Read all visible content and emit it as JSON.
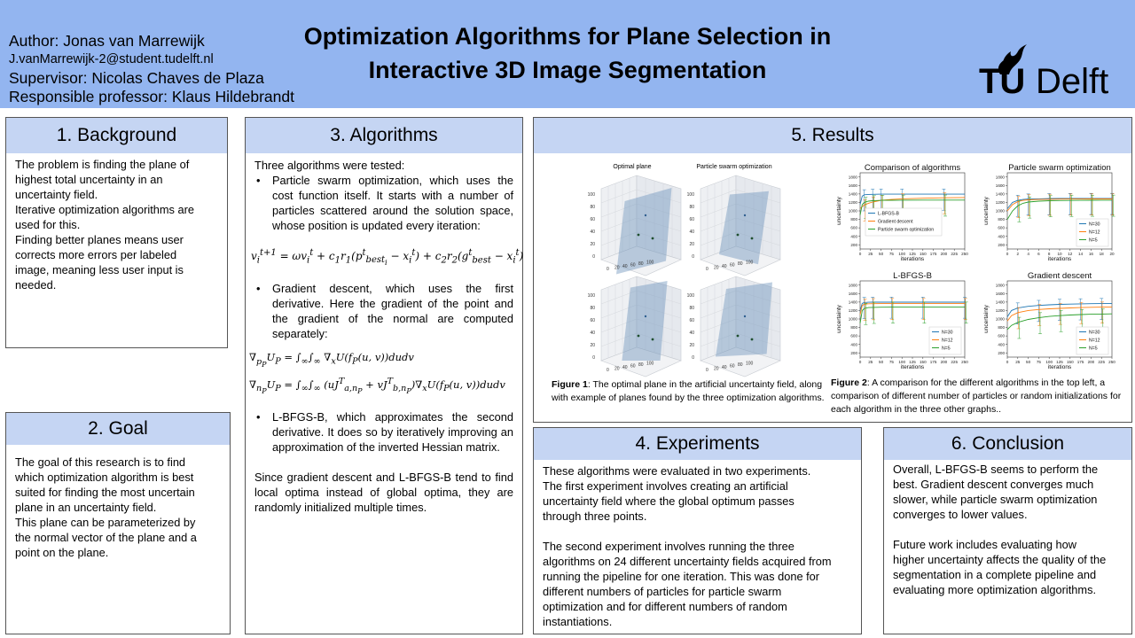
{
  "header": {
    "author": "Author: Jonas van Marrewijk",
    "email": "J.vanMarrewijk-2@student.tudelft.nl",
    "supervisor": "Supervisor: Nicolas Chaves de Plaza",
    "professor": "Responsible professor: Klaus Hildebrandt",
    "title_line1": "Optimization Algorithms for Plane Selection in",
    "title_line2": "Interactive 3D Image Segmentation",
    "logo_tu": "TU",
    "logo_delft": "Delft"
  },
  "background": {
    "title": "1. Background",
    "lines": [
      "The problem is finding the plane of",
      "highest total uncertainty in an",
      "uncertainty field.",
      "Iterative optimization algorithms are",
      "used for this.",
      "Finding better planes means user",
      "corrects more errors per labeled",
      "image, meaning less user input is",
      "needed."
    ]
  },
  "goal": {
    "title": "2. Goal",
    "lines": [
      "The goal of this research is to find",
      "which optimization algorithm is best",
      "suited for finding the most uncertain",
      "plane in an uncertainty field.",
      "This plane can be parameterized by",
      "the normal vector of the plane and a",
      "point on the plane."
    ]
  },
  "algorithms": {
    "title": "3. Algorithms",
    "intro": "Three algorithms were tested:",
    "pso": "Particle swarm optimization, which uses the cost function itself. It starts with a number of particles scattered around the solution space, whose position is updated every iteration:",
    "pso_formula": "v_i^{t+1} = ωv_i^t + c1r1(p_best,i − x_i^t) + c2r2(g_best − x_i^t)",
    "gd": "Gradient descent, which uses the first derivative. Here the gradient of the point and the gradient of the normal are computed separately:",
    "gd_formula1": "∇_pP U_P = ∫∞∫∞ ∇_x U(f_P(u,v)) du dv",
    "gd_formula2": "∇_nP U_P = ∫∞∫∞ (u J^T_a,nP + v J^T_b,nP) ∇_x U(f_P(u,v)) du dv",
    "lbfgsb": "L-BFGS-B, which approximates the second derivative. It does so by iteratively improving an approximation of the inverted Hessian matrix.",
    "closing": "Since gradient descent and L-BFGS-B tend to find local optima instead of global optima, they are randomly initialized multiple times."
  },
  "results": {
    "title": "5. Results",
    "fig1_titles": [
      "Optimal plane",
      "Particle swarm optimization"
    ],
    "fig1_label": "Figure 1",
    "fig1_caption": ": The optimal plane in the artificial uncertainty field, along with example of planes found by the three optimization algorithms.",
    "fig2_label": "Figure 2",
    "fig2_caption": ": A comparison for the different algorithms in the top left, a comparison of different number of particles or random initializations for each algorithm in the three other graphs.."
  },
  "experiments": {
    "title": "4. Experiments",
    "lines1": [
      "These algorithms were evaluated in two experiments.",
      "The first experiment involves creating an artificial",
      "uncertainty field where the global optimum passes",
      "through three points."
    ],
    "lines2": [
      "The second experiment involves running the three",
      "algorithms on 24 different uncertainty fields acquired from",
      "running the pipeline for one iteration. This was done for",
      "different numbers of particles for particle swarm",
      "optimization and for different numbers of random",
      "instantiations."
    ]
  },
  "conclusion": {
    "title": "6. Conclusion",
    "lines1": [
      "Overall, L-BFGS-B seems to perform the",
      "best. Gradient descent converges much",
      "slower, while particle swarm optimization",
      "converges to lower values."
    ],
    "lines2": [
      "Future work includes evaluating how",
      "higher uncertainty affects the quality of the",
      "segmentation in a complete pipeline and",
      "evaluating more optimization algorithms."
    ]
  },
  "colors": {
    "header": "#93b5f0",
    "section_title": "#c5d5f3",
    "series1": "#1f77b4",
    "series2": "#ff7f0e",
    "series3": "#2ca02c"
  },
  "chart_data": [
    {
      "type": "line",
      "title": "Comparison of algorithms",
      "xlabel": "iterations",
      "ylabel": "uncertainty",
      "xticks": [
        0,
        25,
        50,
        75,
        100,
        125,
        150,
        175,
        200,
        225,
        250
      ],
      "yticks": [
        200,
        400,
        600,
        800,
        1000,
        1200,
        1400,
        1600,
        1800
      ],
      "xlim": [
        0,
        250
      ],
      "ylim": [
        100,
        1900
      ],
      "x": [
        0,
        5,
        10,
        20,
        30,
        40,
        50,
        75,
        100,
        150,
        200,
        250
      ],
      "series": [
        {
          "name": "L-BFGS-B",
          "color": "#1f77b4",
          "values": [
            1150,
            1350,
            1380,
            1390,
            1392,
            1394,
            1395,
            1395,
            1395,
            1395,
            1395,
            1395
          ]
        },
        {
          "name": "Gradient descent",
          "color": "#ff7f0e",
          "values": [
            1050,
            1100,
            1140,
            1180,
            1210,
            1230,
            1250,
            1270,
            1285,
            1300,
            1310,
            1315
          ]
        },
        {
          "name": "Particle swarm optimization",
          "color": "#2ca02c",
          "values": [
            900,
            1150,
            1200,
            1230,
            1240,
            1245,
            1250,
            1252,
            1254,
            1255,
            1256,
            1256
          ]
        }
      ],
      "legend": "center"
    },
    {
      "type": "line",
      "title": "Particle swarm optimization",
      "xlabel": "iterations",
      "ylabel": "uncertainty",
      "xticks": [
        0,
        2,
        4,
        6,
        8,
        10,
        12,
        14,
        16,
        18,
        20
      ],
      "yticks": [
        200,
        400,
        600,
        800,
        1000,
        1200,
        1400,
        1600,
        1800
      ],
      "xlim": [
        0,
        20
      ],
      "ylim": [
        100,
        1900
      ],
      "x": [
        0,
        1,
        2,
        3,
        4,
        6,
        8,
        10,
        12,
        14,
        16,
        18,
        20
      ],
      "series": [
        {
          "name": "N=30",
          "color": "#1f77b4",
          "values": [
            1050,
            1200,
            1250,
            1270,
            1280,
            1285,
            1290,
            1292,
            1293,
            1294,
            1295,
            1295,
            1295
          ]
        },
        {
          "name": "N=12",
          "color": "#ff7f0e",
          "values": [
            1000,
            1150,
            1220,
            1250,
            1262,
            1270,
            1275,
            1278,
            1280,
            1281,
            1282,
            1282,
            1282
          ]
        },
        {
          "name": "N=5",
          "color": "#2ca02c",
          "values": [
            800,
            1000,
            1120,
            1180,
            1210,
            1230,
            1240,
            1245,
            1248,
            1250,
            1252,
            1253,
            1253
          ]
        }
      ],
      "legend": "lower-right"
    },
    {
      "type": "line",
      "title": "L-BFGS-B",
      "xlabel": "iterations",
      "ylabel": "uncertainty",
      "xticks": [
        0,
        25,
        50,
        75,
        100,
        125,
        150,
        175,
        200,
        225,
        250
      ],
      "yticks": [
        200,
        400,
        600,
        800,
        1000,
        1200,
        1400,
        1600,
        1800
      ],
      "xlim": [
        0,
        250
      ],
      "ylim": [
        100,
        1900
      ],
      "x": [
        0,
        5,
        10,
        20,
        30,
        50,
        75,
        100,
        150,
        200,
        250
      ],
      "series": [
        {
          "name": "N=30",
          "color": "#1f77b4",
          "values": [
            1200,
            1370,
            1390,
            1395,
            1397,
            1398,
            1398,
            1398,
            1398,
            1398,
            1398
          ]
        },
        {
          "name": "N=12",
          "color": "#ff7f0e",
          "values": [
            1100,
            1320,
            1350,
            1360,
            1362,
            1364,
            1365,
            1365,
            1365,
            1365,
            1365
          ]
        },
        {
          "name": "N=5",
          "color": "#2ca02c",
          "values": [
            900,
            1200,
            1250,
            1270,
            1275,
            1278,
            1280,
            1280,
            1280,
            1280,
            1280
          ]
        }
      ],
      "legend": "lower-right"
    },
    {
      "type": "line",
      "title": "Gradient descent",
      "xlabel": "iterations",
      "ylabel": "uncertainty",
      "xticks": [
        0,
        25,
        50,
        75,
        100,
        125,
        150,
        175,
        200,
        225,
        250
      ],
      "yticks": [
        200,
        400,
        600,
        800,
        1000,
        1200,
        1400,
        1600,
        1800
      ],
      "xlim": [
        0,
        250
      ],
      "ylim": [
        100,
        1900
      ],
      "x": [
        0,
        10,
        25,
        50,
        75,
        100,
        125,
        150,
        175,
        200,
        225,
        250
      ],
      "series": [
        {
          "name": "N=30",
          "color": "#1f77b4",
          "values": [
            1050,
            1200,
            1260,
            1300,
            1320,
            1335,
            1345,
            1352,
            1358,
            1362,
            1365,
            1368
          ]
        },
        {
          "name": "N=12",
          "color": "#ff7f0e",
          "values": [
            950,
            1080,
            1150,
            1200,
            1225,
            1240,
            1252,
            1262,
            1270,
            1276,
            1281,
            1285
          ]
        },
        {
          "name": "N=5",
          "color": "#2ca02c",
          "values": [
            750,
            850,
            920,
            990,
            1030,
            1060,
            1080,
            1095,
            1105,
            1112,
            1118,
            1122
          ]
        }
      ],
      "legend": "lower-right"
    }
  ]
}
